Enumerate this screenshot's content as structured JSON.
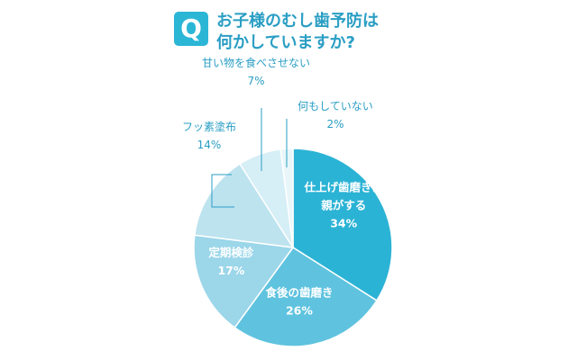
{
  "badge": {
    "letter": "Q"
  },
  "question": {
    "line1": "お子様のむし歯予防は",
    "line2": "何かしていますか?"
  },
  "chart_data": {
    "type": "pie",
    "title": "お子様のむし歯予防は何かしていますか?",
    "start": "12 o'clock, clockwise",
    "slices": [
      {
        "label_lines": [
          "仕上げ歯磨きは",
          "親がする"
        ],
        "value": 34,
        "value_label": "34%",
        "color": "#2bb3d5",
        "label_position": "inside"
      },
      {
        "label_lines": [
          "食後の歯磨き"
        ],
        "value": 26,
        "value_label": "26%",
        "color": "#5fc3df",
        "label_position": "inside"
      },
      {
        "label_lines": [
          "定期検診"
        ],
        "value": 17,
        "value_label": "17%",
        "color": "#9bd6e9",
        "label_position": "inside"
      },
      {
        "label_lines": [
          "フッ素塗布"
        ],
        "value": 14,
        "value_label": "14%",
        "color": "#bde3ef",
        "label_position": "outside"
      },
      {
        "label_lines": [
          "甘い物を食べさせない"
        ],
        "value": 7,
        "value_label": "7%",
        "color": "#d6eef6",
        "label_position": "outside"
      },
      {
        "label_lines": [
          "何もしていない"
        ],
        "value": 2,
        "value_label": "2%",
        "color": "#e8f6fa",
        "label_position": "outside"
      }
    ]
  }
}
